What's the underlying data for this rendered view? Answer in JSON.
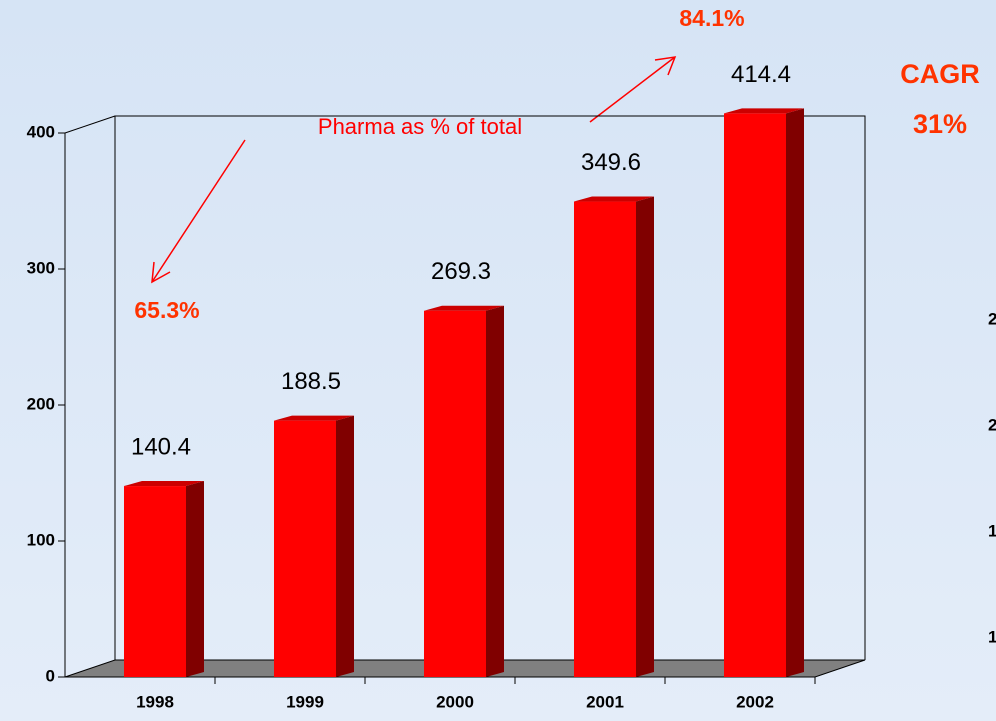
{
  "chart_data": {
    "type": "bar3d",
    "categories": [
      "1998",
      "1999",
      "2000",
      "2001",
      "2002"
    ],
    "values": [
      140.4,
      188.5,
      269.3,
      349.6,
      414.4
    ],
    "color": "#ff0000",
    "side_color": "#800000",
    "floor_color": "#808080",
    "ylim": [
      0,
      400
    ],
    "yticks": [
      0,
      100,
      200,
      300,
      400
    ],
    "annotations": {
      "label": "Pharma as % of total",
      "start": "65.3%",
      "end": "84.1%",
      "cagr_title": "CAGR",
      "cagr_value": "31%"
    },
    "partial_labels": [
      "2",
      "2",
      "1",
      "1"
    ]
  }
}
